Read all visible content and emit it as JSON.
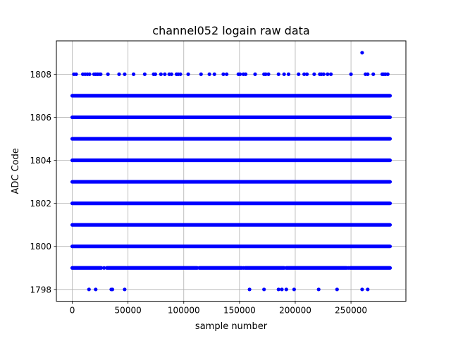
{
  "chart_data": {
    "type": "scatter",
    "title": "channel052 logain raw data",
    "xlabel": "sample number",
    "ylabel": "ADC Code",
    "xlim": [
      -14250,
      299250
    ],
    "ylim": [
      1797.45,
      1809.55
    ],
    "x_ticks": [
      0,
      50000,
      100000,
      150000,
      200000,
      250000
    ],
    "x_tick_labels": [
      "0",
      "50000",
      "100000",
      "150000",
      "200000",
      "250000"
    ],
    "y_ticks": [
      1798,
      1800,
      1802,
      1804,
      1806,
      1808
    ],
    "y_tick_labels": [
      "1798",
      "1800",
      "1802",
      "1804",
      "1806",
      "1808"
    ],
    "grid": true,
    "marker_color": "#0000ff",
    "sample_range": [
      0,
      285000
    ],
    "dense_levels": [
      1800,
      1801,
      1802,
      1803,
      1804,
      1805,
      1806,
      1807
    ],
    "level_1799_density": "near-continuous with small gaps",
    "level_1808_x": [
      1500,
      3500,
      9500,
      11500,
      13500,
      15500,
      19500,
      21000,
      22500,
      24000,
      25500,
      32000,
      42000,
      47000,
      55000,
      65000,
      73000,
      74500,
      79500,
      83000,
      87000,
      89000,
      93500,
      95000,
      97000,
      104000,
      115500,
      123000,
      127500,
      135500,
      138500,
      149000,
      150500,
      153500,
      155500,
      164000,
      172000,
      173500,
      176000,
      185000,
      190000,
      194000,
      203000,
      208000,
      210500,
      217000,
      222000,
      223500,
      225500,
      229000,
      232000,
      250000,
      263000,
      265000,
      270000,
      278000,
      279500,
      281000,
      283000
    ],
    "level_1809_x": [
      260000
    ],
    "level_1798_x": [
      15000,
      21000,
      35000,
      36000,
      47000,
      159000,
      172000,
      185000,
      188000,
      192000,
      199000,
      221000,
      237500,
      260000,
      265000
    ]
  }
}
